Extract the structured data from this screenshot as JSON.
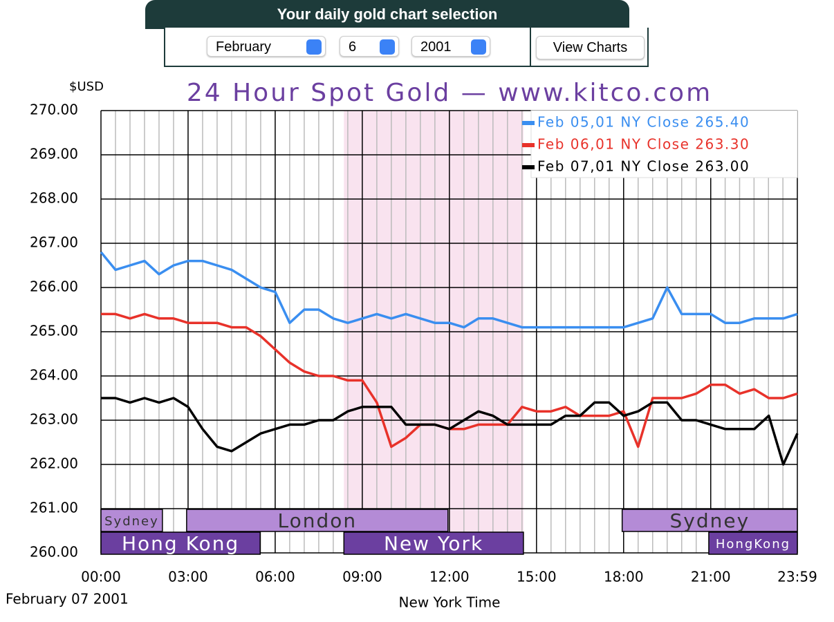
{
  "form": {
    "title": "Your daily gold chart selection",
    "month": "February",
    "day": "6",
    "year": "2001",
    "button": "View Charts"
  },
  "chart_data": {
    "type": "line",
    "title": "24 Hour Spot Gold — www.kitco.com",
    "y_unit": "$USD",
    "date": "February 07 2001",
    "xlabel": "New York Time",
    "x": [
      0,
      30,
      60,
      90,
      120,
      150,
      180,
      210,
      240,
      270,
      300,
      330,
      360,
      390,
      420,
      450,
      480,
      510,
      540,
      570,
      600,
      630,
      660,
      690,
      720,
      750,
      780,
      810,
      840,
      870,
      900,
      930,
      960,
      990,
      1020,
      1050,
      1080,
      1110,
      1140,
      1170,
      1200,
      1230,
      1260,
      1290,
      1320,
      1350,
      1380,
      1410,
      1439
    ],
    "series": [
      {
        "name": "Feb 05,01 NY Close 265.40",
        "color": "#3a8ef0",
        "values": [
          266.8,
          266.4,
          266.5,
          266.6,
          266.3,
          266.5,
          266.6,
          266.6,
          266.5,
          266.4,
          266.2,
          266.0,
          265.9,
          265.2,
          265.5,
          265.5,
          265.3,
          265.2,
          265.3,
          265.4,
          265.3,
          265.4,
          265.3,
          265.2,
          265.2,
          265.1,
          265.3,
          265.3,
          265.2,
          265.1,
          265.1,
          265.1,
          265.1,
          265.1,
          265.1,
          265.1,
          265.1,
          265.2,
          265.3,
          266.0,
          265.4,
          265.4,
          265.4,
          265.2,
          265.2,
          265.3,
          265.3,
          265.3,
          265.4
        ]
      },
      {
        "name": "Feb 06,01 NY Close 263.30",
        "color": "#e8322a",
        "values": [
          265.4,
          265.4,
          265.3,
          265.4,
          265.3,
          265.3,
          265.2,
          265.2,
          265.2,
          265.1,
          265.1,
          264.9,
          264.6,
          264.3,
          264.1,
          264.0,
          264.0,
          263.9,
          263.9,
          263.4,
          262.4,
          262.6,
          262.9,
          262.9,
          262.8,
          262.8,
          262.9,
          262.9,
          262.9,
          263.3,
          263.2,
          263.2,
          263.3,
          263.1,
          263.1,
          263.1,
          263.2,
          262.4,
          263.5,
          263.5,
          263.5,
          263.6,
          263.8,
          263.8,
          263.6,
          263.7,
          263.5,
          263.5,
          263.6
        ]
      },
      {
        "name": "Feb 07,01 NY Close 263.00",
        "color": "#000000",
        "values": [
          263.5,
          263.5,
          263.4,
          263.5,
          263.4,
          263.5,
          263.3,
          262.8,
          262.4,
          262.3,
          262.5,
          262.7,
          262.8,
          262.9,
          262.9,
          263.0,
          263.0,
          263.2,
          263.3,
          263.3,
          263.3,
          262.9,
          262.9,
          262.9,
          262.8,
          263.0,
          263.2,
          263.1,
          262.9,
          262.9,
          262.9,
          262.9,
          263.1,
          263.1,
          263.4,
          263.4,
          263.1,
          263.2,
          263.4,
          263.4,
          263.0,
          263.0,
          262.9,
          262.8,
          262.8,
          262.8,
          263.1,
          262.0,
          262.7
        ]
      }
    ],
    "xlim": [
      0,
      1439
    ],
    "xticks": [
      {
        "value": 0,
        "label": "00:00"
      },
      {
        "value": 180,
        "label": "03:00"
      },
      {
        "value": 360,
        "label": "06:00"
      },
      {
        "value": 540,
        "label": "09:00"
      },
      {
        "value": 720,
        "label": "12:00"
      },
      {
        "value": 900,
        "label": "15:00"
      },
      {
        "value": 1080,
        "label": "18:00"
      },
      {
        "value": 1260,
        "label": "21:00"
      },
      {
        "value": 1439,
        "label": "23:59"
      }
    ],
    "ylim": [
      260,
      270
    ],
    "yticks": [
      {
        "value": 260,
        "label": "260.00"
      },
      {
        "value": 261,
        "label": "261.00"
      },
      {
        "value": 262,
        "label": "262.00"
      },
      {
        "value": 263,
        "label": "263.00"
      },
      {
        "value": 264,
        "label": "264.00"
      },
      {
        "value": 265,
        "label": "265.00"
      },
      {
        "value": 266,
        "label": "266.00"
      },
      {
        "value": 267,
        "label": "267.00"
      },
      {
        "value": 268,
        "label": "268.00"
      },
      {
        "value": 269,
        "label": "269.00"
      },
      {
        "value": 270,
        "label": "270.00"
      }
    ],
    "grid": true,
    "shade": [
      502,
      873
    ],
    "sessions_top": [
      {
        "label": "Sydney",
        "start": 0,
        "end": 127
      },
      {
        "label": "London",
        "start": 177,
        "end": 717
      },
      {
        "label": "Sydney",
        "start": 1077,
        "end": 1439
      }
    ],
    "sessions_bottom": [
      {
        "label": "Hong Kong",
        "start": 0,
        "end": 329
      },
      {
        "label": "New York",
        "start": 502,
        "end": 873
      },
      {
        "label": "HongKong",
        "start": 1256,
        "end": 1439
      }
    ]
  }
}
